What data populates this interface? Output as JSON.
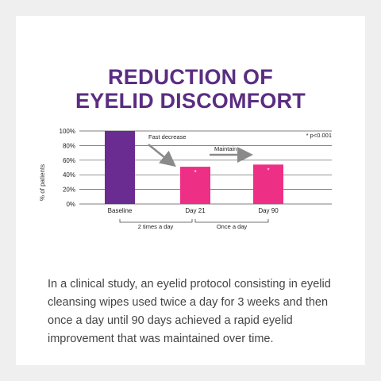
{
  "title": {
    "line1": "REDUCTION OF",
    "line2": "EYELID DISCOMFORT"
  },
  "colors": {
    "title": "#5a2d82",
    "baseline_bar": "#6b2c91",
    "day_bar": "#ee2f86",
    "arrow": "#8a8a8a",
    "text": "#444444"
  },
  "chart_data": {
    "type": "bar",
    "categories": [
      "Baseline",
      "Day 21",
      "Day 90"
    ],
    "values": [
      100,
      51,
      54
    ],
    "ylabel": "% of patients",
    "yticks": [
      "0%",
      "20%",
      "40%",
      "60%",
      "80%",
      "100%"
    ],
    "ylim": [
      0,
      100
    ],
    "significance_marks": [
      "",
      "*",
      "*"
    ],
    "annotations": {
      "fast_decrease": "Fast decrease",
      "maintain": "Maintain",
      "pvalue": "* p<0.001"
    },
    "periods": [
      {
        "label": "2 times a day"
      },
      {
        "label": "Once a day"
      }
    ]
  },
  "description": "In a clinical study, an eyelid protocol consisting in eyelid cleansing wipes used twice a day for 3 weeks and then once a day until 90 days achieved a rapid eyelid improvement that was maintained over time."
}
